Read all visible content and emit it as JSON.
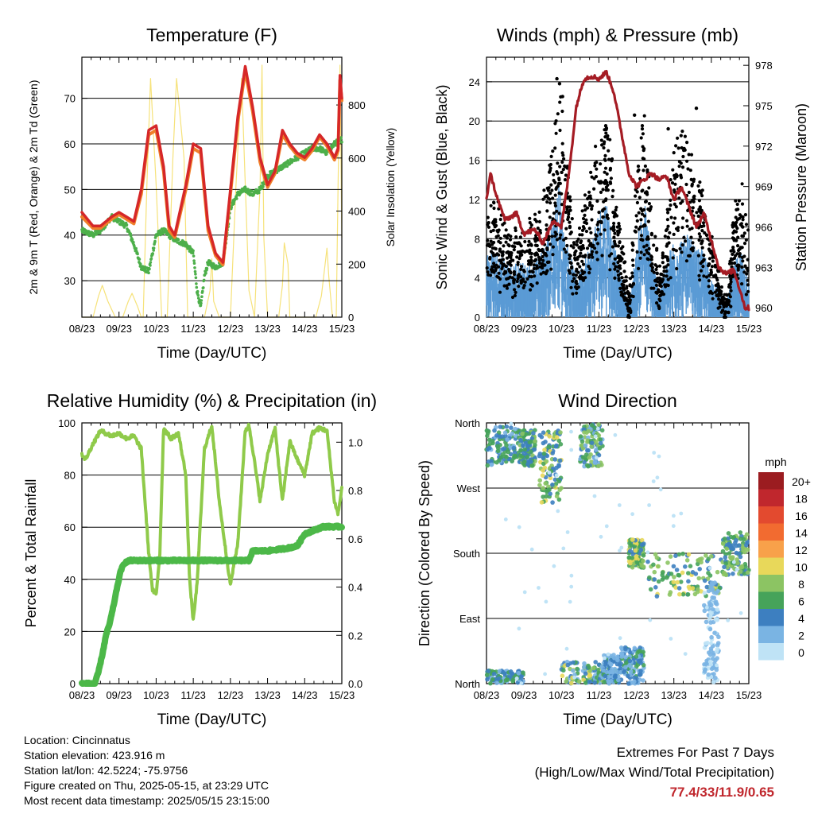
{
  "colors": {
    "t2m": "#d62728",
    "t9m": "#f07f2a",
    "td": "#4daf4a",
    "solar": "#f6e27a",
    "gust": "#000000",
    "wind": "#5b9bd5",
    "pressure": "#a51c24",
    "rh": "#8fca4a",
    "precip": "#4cb848",
    "extremes": "#c0272d"
  },
  "time_ticks": [
    "08/23",
    "09/23",
    "10/23",
    "11/23",
    "12/23",
    "13/23",
    "14/23",
    "15/23"
  ],
  "info": {
    "location": "Location: Cincinnatus",
    "elevation": "Station elevation: 423.916 m",
    "latlon": "Station lat/lon: 42.5224; -75.9756",
    "created": "Figure created on Thu, 2025-05-15, at 23:29 UTC",
    "latest": "Most recent data timestamp: 2025/05/15 23:15:00"
  },
  "extremes": {
    "line1": "Extremes For Past 7 Days",
    "line2": "(High/Low/Max Wind/Total Precipitation)",
    "values": "77.4/33/11.9/0.65"
  },
  "chart_data": [
    {
      "id": "temperature",
      "type": "line",
      "title": "Temperature (F)",
      "xlabel": "Time (Day/UTC)",
      "ylabel": "2m & 9m T (Red, Orange) & 2m Td (Green)",
      "y2label": "Solar Insolation (Yellow)",
      "xlim": [
        0,
        7
      ],
      "ylim": [
        22,
        79
      ],
      "y_ticks": [
        30,
        40,
        50,
        60,
        70
      ],
      "y2lim": [
        0,
        980
      ],
      "y2_ticks": [
        0,
        200,
        400,
        600,
        800
      ],
      "grid": true,
      "series": [
        {
          "key": "t2m",
          "x": [
            0,
            0.3,
            0.5,
            0.8,
            1.0,
            1.2,
            1.4,
            1.6,
            1.8,
            2.0,
            2.2,
            2.35,
            2.5,
            2.8,
            3.0,
            3.2,
            3.4,
            3.6,
            3.8,
            4.0,
            4.2,
            4.4,
            4.6,
            4.8,
            5.0,
            5.2,
            5.4,
            5.6,
            5.8,
            6.0,
            6.2,
            6.4,
            6.6,
            6.8,
            6.9,
            6.95,
            7.0
          ],
          "y": [
            45,
            42,
            42,
            44,
            45,
            44,
            43,
            50,
            63,
            64,
            55,
            42,
            40,
            51,
            60,
            59,
            42,
            36,
            34,
            50,
            66,
            77,
            68,
            57,
            51,
            54,
            63,
            60,
            58,
            57,
            59,
            62,
            60,
            57,
            59,
            75,
            70
          ]
        },
        {
          "key": "t9m",
          "x": [
            0,
            0.3,
            0.5,
            0.8,
            1.0,
            1.2,
            1.4,
            1.6,
            1.8,
            2.0,
            2.2,
            2.35,
            2.5,
            2.8,
            3.0,
            3.2,
            3.4,
            3.6,
            3.8,
            4.0,
            4.2,
            4.4,
            4.6,
            4.8,
            5.0,
            5.2,
            5.4,
            5.6,
            5.8,
            6.0,
            6.2,
            6.4,
            6.6,
            6.8,
            6.9,
            6.95,
            7.0
          ],
          "y": [
            44,
            41.5,
            41.5,
            43.5,
            44.5,
            43.5,
            42.5,
            49,
            62,
            63,
            54,
            41,
            39.5,
            50,
            59,
            58,
            41,
            35.5,
            33.5,
            49,
            65,
            76,
            67,
            56,
            50.5,
            53.5,
            62,
            59.5,
            57.5,
            56.5,
            58.5,
            61.5,
            59.5,
            56.5,
            58.5,
            74,
            69.5
          ]
        },
        {
          "key": "td",
          "x": [
            0,
            0.3,
            0.5,
            0.8,
            1.0,
            1.2,
            1.4,
            1.6,
            1.8,
            2.0,
            2.2,
            2.5,
            2.8,
            3.0,
            3.1,
            3.2,
            3.3,
            3.4,
            3.6,
            3.8,
            4.0,
            4.2,
            4.4,
            4.6,
            4.8,
            5.0,
            5.2,
            5.4,
            5.6,
            5.8,
            6.0,
            6.2,
            6.4,
            6.6,
            6.8,
            7.0
          ],
          "y": [
            41,
            40,
            41,
            44,
            43,
            42,
            38,
            33,
            32,
            40,
            41,
            39,
            38,
            36,
            28,
            24,
            31,
            34,
            33,
            34,
            46,
            49,
            50,
            49,
            50,
            53,
            54,
            55,
            56,
            57,
            58,
            59,
            59,
            58,
            60,
            61
          ]
        },
        {
          "key": "solar",
          "x": [
            0,
            0.3,
            0.45,
            0.55,
            0.7,
            0.9,
            1.1,
            1.25,
            1.35,
            1.5,
            1.6,
            1.65,
            1.75,
            1.85,
            2.0,
            2.15,
            2.3,
            2.45,
            2.55,
            2.75,
            2.85,
            3.0,
            3.3,
            3.45,
            3.5,
            3.55,
            3.7,
            3.85,
            4.0,
            4.15,
            4.3,
            4.5,
            4.65,
            4.8,
            4.85,
            4.9,
            5.0,
            5.3,
            5.4,
            5.45,
            5.55,
            5.6,
            5.75,
            5.85,
            6.0,
            6.3,
            6.45,
            6.55,
            6.6,
            6.65,
            6.75,
            6.85,
            6.9,
            6.95,
            7.0
          ],
          "y": [
            0,
            0,
            80,
            120,
            60,
            0,
            0,
            60,
            90,
            40,
            0,
            0,
            500,
            900,
            500,
            0,
            0,
            600,
            900,
            600,
            0,
            0,
            0,
            100,
            220,
            60,
            0,
            0,
            0,
            500,
            900,
            100,
            0,
            500,
            950,
            300,
            0,
            0,
            120,
            280,
            200,
            0,
            0,
            0,
            0,
            0,
            80,
            200,
            260,
            150,
            0,
            0,
            500,
            950,
            300
          ]
        }
      ]
    },
    {
      "id": "winds",
      "type": "scatter",
      "title": "Winds (mph) & Pressure (mb)",
      "xlabel": "Time (Day/UTC)",
      "ylabel": "Sonic Wind & Gust (Blue, Black)",
      "y2label": "Station Pressure (Maroon)",
      "xlim": [
        0,
        7
      ],
      "ylim": [
        0,
        26.5
      ],
      "y_ticks": [
        0,
        4,
        8,
        12,
        16,
        20,
        24
      ],
      "y2lim": [
        959.3,
        978.6
      ],
      "y2_ticks": [
        960,
        963,
        966,
        969,
        972,
        975,
        978
      ],
      "grid": true,
      "gust_envelope": {
        "x": [
          0,
          0.3,
          0.6,
          0.9,
          1.2,
          1.5,
          1.8,
          1.95,
          2.1,
          2.4,
          2.7,
          3.0,
          3.2,
          3.5,
          3.8,
          4.0,
          4.2,
          4.4,
          4.6,
          4.8,
          5.0,
          5.2,
          5.4,
          5.6,
          5.8,
          6.0,
          6.2,
          6.4,
          6.6,
          6.8,
          7.0
        ],
        "y": [
          9,
          8,
          7,
          6,
          7,
          9,
          15,
          19,
          13,
          5,
          10,
          14,
          16,
          8,
          1,
          10,
          16,
          9,
          3,
          7,
          13,
          15,
          13,
          11,
          9,
          6,
          3,
          1,
          8,
          10,
          6
        ]
      },
      "wind_envelope": {
        "x": [
          0,
          0.3,
          0.6,
          0.9,
          1.2,
          1.5,
          1.8,
          1.95,
          2.1,
          2.4,
          2.7,
          3.0,
          3.2,
          3.5,
          3.8,
          4.0,
          4.2,
          4.4,
          4.6,
          4.8,
          5.0,
          5.2,
          5.4,
          5.6,
          5.8,
          6.0,
          6.2,
          6.4,
          6.6,
          6.8,
          7.0
        ],
        "y": [
          5,
          5,
          4,
          4,
          4,
          5,
          8,
          10,
          6,
          3,
          5,
          8,
          9,
          4,
          1,
          5,
          9,
          5,
          2,
          4,
          6,
          6,
          6,
          5,
          5,
          3,
          2,
          1,
          4,
          5,
          3
        ]
      },
      "series": [
        {
          "key": "pressure",
          "x": [
            0,
            0.1,
            0.3,
            0.5,
            0.8,
            1.0,
            1.3,
            1.5,
            1.8,
            2.0,
            2.2,
            2.4,
            2.6,
            2.8,
            3.0,
            3.2,
            3.4,
            3.6,
            3.8,
            4.0,
            4.2,
            4.4,
            4.6,
            4.8,
            5.0,
            5.2,
            5.4,
            5.6,
            5.8,
            6.0,
            6.2,
            6.4,
            6.6,
            6.8,
            6.9,
            7.0
          ],
          "y": [
            968,
            970,
            968,
            966.5,
            967,
            965.5,
            965.8,
            964.8,
            966.5,
            966,
            970,
            975,
            977,
            977.2,
            977,
            977.5,
            976,
            973,
            970,
            969,
            969.5,
            970,
            969.5,
            969.8,
            968,
            969,
            967.5,
            966,
            967,
            965,
            963,
            962.5,
            962.8,
            961,
            960,
            960
          ]
        }
      ]
    },
    {
      "id": "humidity",
      "type": "line",
      "title": "Relative Humidity (%) & Precipitation (in)",
      "xlabel": "Time (Day/UTC)",
      "ylabel": "Percent & Total Rainfall",
      "xlim": [
        0,
        7
      ],
      "ylim": [
        0,
        100
      ],
      "y_ticks": [
        0,
        20,
        40,
        60,
        80,
        100
      ],
      "y2lim": [
        0,
        1.08
      ],
      "y2_ticks": [
        "0.0",
        "0.2",
        "0.4",
        "0.6",
        "0.8",
        "1.0"
      ],
      "grid": true,
      "series": [
        {
          "key": "rh",
          "x": [
            0,
            0.1,
            0.3,
            0.5,
            0.8,
            1.0,
            1.2,
            1.4,
            1.6,
            1.8,
            1.9,
            2.0,
            2.1,
            2.2,
            2.4,
            2.6,
            2.8,
            2.9,
            3.0,
            3.1,
            3.3,
            3.5,
            3.7,
            3.9,
            4.0,
            4.2,
            4.4,
            4.5,
            4.6,
            4.8,
            5.0,
            5.2,
            5.4,
            5.6,
            5.8,
            6.0,
            6.2,
            6.4,
            6.6,
            6.8,
            6.9,
            7.0
          ],
          "y": [
            88,
            86,
            92,
            97,
            95,
            96,
            94,
            95,
            90,
            50,
            36,
            34,
            50,
            98,
            94,
            96,
            80,
            40,
            24,
            38,
            90,
            99,
            70,
            48,
            38,
            54,
            97,
            99,
            90,
            70,
            88,
            98,
            70,
            93,
            86,
            80,
            96,
            98,
            97,
            70,
            65,
            75
          ]
        },
        {
          "key": "precip",
          "x": [
            0,
            0.2,
            0.35,
            0.45,
            0.55,
            0.65,
            0.75,
            0.85,
            0.95,
            1.05,
            1.15,
            1.3,
            1.5,
            2.0,
            3.0,
            4.0,
            4.5,
            4.6,
            5.0,
            5.5,
            5.8,
            6.0,
            6.5,
            7.0
          ],
          "y": [
            0,
            0,
            0,
            0.05,
            0.12,
            0.2,
            0.25,
            0.32,
            0.4,
            0.47,
            0.5,
            0.51,
            0.51,
            0.51,
            0.51,
            0.51,
            0.51,
            0.55,
            0.55,
            0.56,
            0.57,
            0.62,
            0.65,
            0.65
          ]
        }
      ]
    },
    {
      "id": "wind_direction",
      "type": "scatter",
      "title": "Wind Direction",
      "xlabel": "Time (Day/UTC)",
      "ylabel": "Direction (Colored By Speed)",
      "xlim": [
        0,
        7
      ],
      "ylim": [
        0,
        360
      ],
      "y_ticks": [
        "North",
        "East",
        "South",
        "West",
        "North"
      ],
      "grid": true,
      "legend_title": "mph",
      "legend_placement": "right",
      "legend_labels": [
        "20+",
        "18",
        "16",
        "14",
        "12",
        "10",
        "8",
        "6",
        "4",
        "2",
        "0"
      ],
      "legend_colors": [
        "#9b1c20",
        "#c0272d",
        "#e34a2f",
        "#f26b30",
        "#f8a14a",
        "#e8d85a",
        "#8cc463",
        "#46a35a",
        "#3d7fc0",
        "#7ab4e3",
        "#bfe3f6"
      ],
      "clusters": [
        {
          "x": [
            0,
            0.9
          ],
          "y": [
            355,
            300
          ],
          "speed": [
            2,
            7
          ]
        },
        {
          "x": [
            0.9,
            1.3
          ],
          "y": [
            350,
            300
          ],
          "speed": [
            3,
            8
          ]
        },
        {
          "x": [
            1.4,
            2.0
          ],
          "y": [
            350,
            250
          ],
          "speed": [
            3,
            10
          ]
        },
        {
          "x": [
            2.5,
            3.1
          ],
          "y": [
            358,
            300
          ],
          "speed": [
            2,
            9
          ]
        },
        {
          "x": [
            0,
            1.0
          ],
          "y": [
            18,
            0
          ],
          "speed": [
            2,
            7
          ]
        },
        {
          "x": [
            2.0,
            3.3
          ],
          "y": [
            30,
            0
          ],
          "speed": [
            1,
            10
          ]
        },
        {
          "x": [
            3.1,
            3.6
          ],
          "y": [
            40,
            0
          ],
          "speed": [
            1,
            6
          ]
        },
        {
          "x": [
            3.6,
            4.2
          ],
          "y": [
            50,
            0
          ],
          "speed": [
            1,
            6
          ]
        },
        {
          "x": [
            3.8,
            4.2
          ],
          "y": [
            200,
            160
          ],
          "speed": [
            4,
            11
          ]
        },
        {
          "x": [
            4.3,
            6.3
          ],
          "y": [
            180,
            120
          ],
          "speed": [
            3,
            10
          ]
        },
        {
          "x": [
            6.3,
            7.0
          ],
          "y": [
            210,
            150
          ],
          "speed": [
            3,
            9
          ]
        },
        {
          "x": [
            5.8,
            6.2
          ],
          "y": [
            140,
            0
          ],
          "speed": [
            0,
            3
          ]
        }
      ]
    }
  ]
}
